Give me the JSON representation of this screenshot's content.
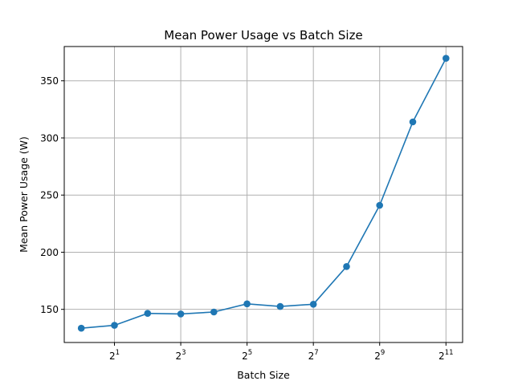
{
  "chart_data": {
    "type": "line",
    "title": "Mean Power Usage vs Batch Size",
    "xlabel": "Batch Size",
    "ylabel": "Mean Power Usage (W)",
    "x_scale": "log2",
    "x": [
      1,
      2,
      4,
      8,
      16,
      32,
      64,
      128,
      256,
      512,
      1024,
      2048
    ],
    "series": [
      {
        "values": [
          133.5,
          136,
          146.5,
          146,
          147.7,
          154.8,
          152.5,
          154.5,
          187.5,
          241,
          314,
          369.7
        ],
        "color": "#1f77b4",
        "marker": "circle"
      }
    ],
    "x_ticks": [
      {
        "base": "2",
        "exp": "1",
        "value": 2
      },
      {
        "base": "2",
        "exp": "3",
        "value": 8
      },
      {
        "base": "2",
        "exp": "5",
        "value": 32
      },
      {
        "base": "2",
        "exp": "7",
        "value": 128
      },
      {
        "base": "2",
        "exp": "9",
        "value": 512
      },
      {
        "base": "2",
        "exp": "11",
        "value": 2048
      }
    ],
    "y_ticks": [
      "150",
      "200",
      "250",
      "300",
      "350"
    ],
    "xlim": [
      0.7,
      2900
    ],
    "ylim": [
      121,
      380
    ],
    "grid": true
  }
}
